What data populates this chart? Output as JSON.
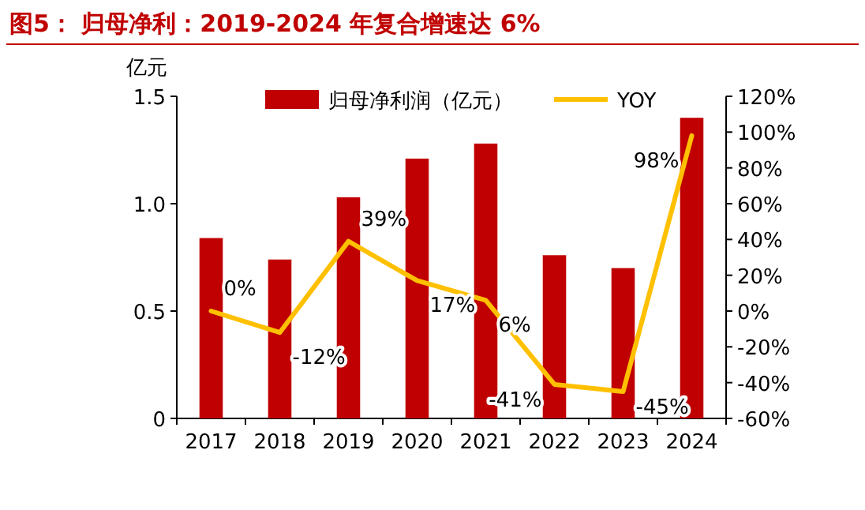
{
  "chart_data": {
    "type": "bar",
    "title": "图5：  归母净利：2019-2024 年复合增速达 6%",
    "ylabel": "亿元",
    "categories": [
      "2017",
      "2018",
      "2019",
      "2020",
      "2021",
      "2022",
      "2023",
      "2024"
    ],
    "series": [
      {
        "name": "归母净利润（亿元）",
        "color": "#c00000",
        "values": [
          0.84,
          0.74,
          1.03,
          1.21,
          1.28,
          0.76,
          0.7,
          1.4
        ]
      },
      {
        "name": "YOY",
        "type": "line",
        "axis": "y2",
        "color": "#ffc000",
        "marker": "none",
        "values": [
          0,
          -12,
          39,
          17,
          6,
          -41,
          -45,
          98
        ],
        "value_labels": [
          "0%",
          "-12%",
          "39%",
          "17%",
          "6%",
          "-41%",
          "-45%",
          "98%"
        ]
      }
    ],
    "ylim": [
      0,
      1.5
    ],
    "yticks": [
      0,
      {
        "value": 0.5,
        "label": "0.5"
      },
      {
        "value": 1,
        "label": "1.0"
      },
      {
        "value": 1.5,
        "label": "1.5"
      }
    ],
    "y2lim": [
      -60,
      120
    ],
    "y2ticks": [
      {
        "value": -60,
        "label": "-60%"
      },
      {
        "value": -40,
        "label": "-40%"
      },
      {
        "value": -20,
        "label": "-20%"
      },
      {
        "value": 0,
        "label": "0%"
      },
      {
        "value": 20,
        "label": "20%"
      },
      {
        "value": 40,
        "label": "40%"
      },
      {
        "value": 60,
        "label": "60%"
      },
      {
        "value": 80,
        "label": "80%"
      },
      {
        "value": 100,
        "label": "100%"
      },
      {
        "value": 120,
        "label": "120%"
      }
    ],
    "legend": "top",
    "grid": false
  }
}
